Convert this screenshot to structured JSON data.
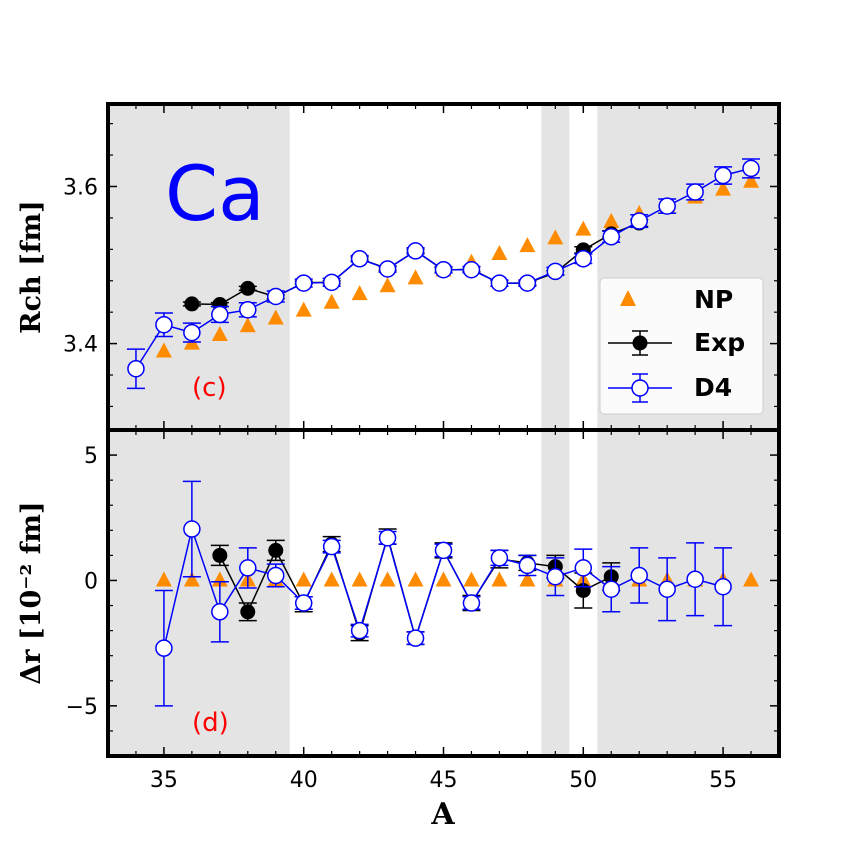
{
  "chart_data": [
    {
      "panel_id": "top",
      "type": "scatter",
      "element_label": "Ca",
      "panel_label": "(c)",
      "xlabel": "A",
      "ylabel": "Rch [fm]",
      "xlim": [
        33,
        57
      ],
      "ylim": [
        3.29,
        3.705
      ],
      "x_ticks": [
        35,
        40,
        45,
        50,
        55
      ],
      "y_ticks": [
        3.4,
        3.6
      ],
      "x_tick_labels": [
        "35",
        "40",
        "45",
        "50",
        "55"
      ],
      "y_tick_labels": [
        "3.4",
        "3.6"
      ],
      "shaded_x_ranges": [
        [
          33,
          39.5
        ],
        [
          48.5,
          49.5
        ],
        [
          50.5,
          57
        ]
      ],
      "legend": {
        "placement": "lower-right",
        "entries": [
          "NP",
          "Exp",
          "D4"
        ]
      },
      "series": [
        {
          "name": "NP",
          "marker": "triangle",
          "color": "#ff8c00",
          "x": [
            35,
            36,
            37,
            38,
            39,
            40,
            41,
            42,
            43,
            44,
            45,
            46,
            47,
            48,
            49,
            50,
            51,
            52,
            53,
            54,
            55,
            56
          ],
          "y": [
            3.39,
            3.4,
            3.411,
            3.422,
            3.432,
            3.442,
            3.452,
            3.463,
            3.473,
            3.483,
            3.493,
            3.503,
            3.514,
            3.524,
            3.534,
            3.545,
            3.555,
            3.565,
            3.575,
            3.586,
            3.596,
            3.606
          ]
        },
        {
          "name": "Exp",
          "marker": "filled-circle",
          "color": "#000000",
          "x": [
            36,
            37,
            38,
            39,
            40,
            41,
            42,
            43,
            44,
            45,
            46,
            47,
            48,
            49,
            50,
            51,
            52
          ],
          "y": [
            3.4505,
            3.4497,
            3.4703,
            3.4596,
            3.4776,
            3.478,
            3.5081,
            3.4954,
            3.5179,
            3.4936,
            3.4948,
            3.4767,
            3.4771,
            3.4903,
            3.5193,
            3.5396,
            3.5535
          ],
          "err": [
            0.0025,
            0.0025,
            0.0025,
            0.0025,
            0.0019,
            0.0019,
            0.0022,
            0.0024,
            0.0021,
            0.0029,
            0.0032,
            0.0035,
            0.0023,
            0.0025,
            0.004,
            0.004,
            0.0045
          ]
        },
        {
          "name": "D4",
          "marker": "open-circle",
          "color": "#0000ff",
          "x": [
            34,
            35,
            36,
            37,
            38,
            39,
            40,
            41,
            42,
            43,
            44,
            45,
            46,
            47,
            48,
            49,
            50,
            51,
            52,
            53,
            54,
            55,
            56
          ],
          "y": [
            3.368,
            3.424,
            3.414,
            3.437,
            3.443,
            3.46,
            3.477,
            3.478,
            3.508,
            3.495,
            3.518,
            3.494,
            3.494,
            3.477,
            3.477,
            3.492,
            3.508,
            3.536,
            3.556,
            3.575,
            3.593,
            3.614,
            3.623
          ],
          "err": [
            0.025,
            0.015,
            0.012,
            0.01,
            0.009,
            0.007,
            0.005,
            0.005,
            0.004,
            0.004,
            0.004,
            0.004,
            0.004,
            0.004,
            0.004,
            0.005,
            0.006,
            0.007,
            0.008,
            0.009,
            0.01,
            0.011,
            0.012
          ]
        }
      ]
    },
    {
      "panel_id": "bottom",
      "type": "scatter",
      "panel_label": "(d)",
      "xlabel": "A",
      "ylabel": "Δr [10⁻² fm]",
      "xlim": [
        33,
        57
      ],
      "ylim": [
        -7,
        6
      ],
      "x_ticks": [
        35,
        40,
        45,
        50,
        55
      ],
      "y_ticks": [
        -5,
        0,
        5
      ],
      "x_tick_labels": [
        "35",
        "40",
        "45",
        "50",
        "55"
      ],
      "y_tick_labels": [
        "−5",
        "0",
        "5"
      ],
      "shaded_x_ranges": [
        [
          33,
          39.5
        ],
        [
          48.5,
          49.5
        ],
        [
          50.5,
          57
        ]
      ],
      "series": [
        {
          "name": "NP",
          "marker": "triangle",
          "color": "#ff8c00",
          "x": [
            35,
            36,
            37,
            38,
            39,
            40,
            41,
            42,
            43,
            44,
            45,
            46,
            47,
            48,
            49,
            50,
            51,
            52,
            53,
            54,
            55,
            56
          ],
          "y": [
            0,
            0,
            0,
            0,
            0,
            0,
            0,
            0,
            0,
            0,
            0,
            0,
            0,
            0,
            0,
            0,
            0,
            0,
            0,
            0,
            0,
            0
          ]
        },
        {
          "name": "Exp",
          "marker": "filled-circle",
          "color": "#000000",
          "x": [
            37,
            38,
            39,
            40,
            41,
            42,
            43,
            44,
            45,
            46,
            47,
            48,
            49,
            50,
            51
          ],
          "y": [
            1.0,
            -1.25,
            1.2,
            -0.95,
            1.45,
            -2.1,
            1.75,
            -2.3,
            1.2,
            -0.9,
            0.85,
            0.7,
            0.55,
            -0.4,
            0.15
          ],
          "err": [
            0.4,
            0.35,
            0.4,
            0.3,
            0.3,
            0.3,
            0.3,
            0.25,
            0.3,
            0.3,
            0.35,
            0.3,
            0.45,
            0.7,
            0.55
          ]
        },
        {
          "name": "D4",
          "marker": "open-circle",
          "color": "#0000ff",
          "x": [
            35,
            36,
            37,
            38,
            39,
            40,
            41,
            42,
            43,
            44,
            45,
            46,
            47,
            48,
            49,
            50,
            51,
            52,
            53,
            54,
            55
          ],
          "y": [
            -2.7,
            2.05,
            -1.25,
            0.5,
            0.2,
            -0.9,
            1.35,
            -2.0,
            1.7,
            -2.3,
            1.2,
            -0.9,
            0.9,
            0.6,
            0.15,
            0.5,
            -0.35,
            0.2,
            -0.35,
            0.05,
            -0.25
          ],
          "err": [
            2.3,
            1.9,
            1.2,
            0.8,
            0.45,
            0.25,
            0.25,
            0.25,
            0.25,
            0.25,
            0.25,
            0.25,
            0.3,
            0.4,
            0.75,
            0.75,
            0.9,
            1.1,
            1.25,
            1.45,
            1.55
          ]
        }
      ]
    }
  ]
}
